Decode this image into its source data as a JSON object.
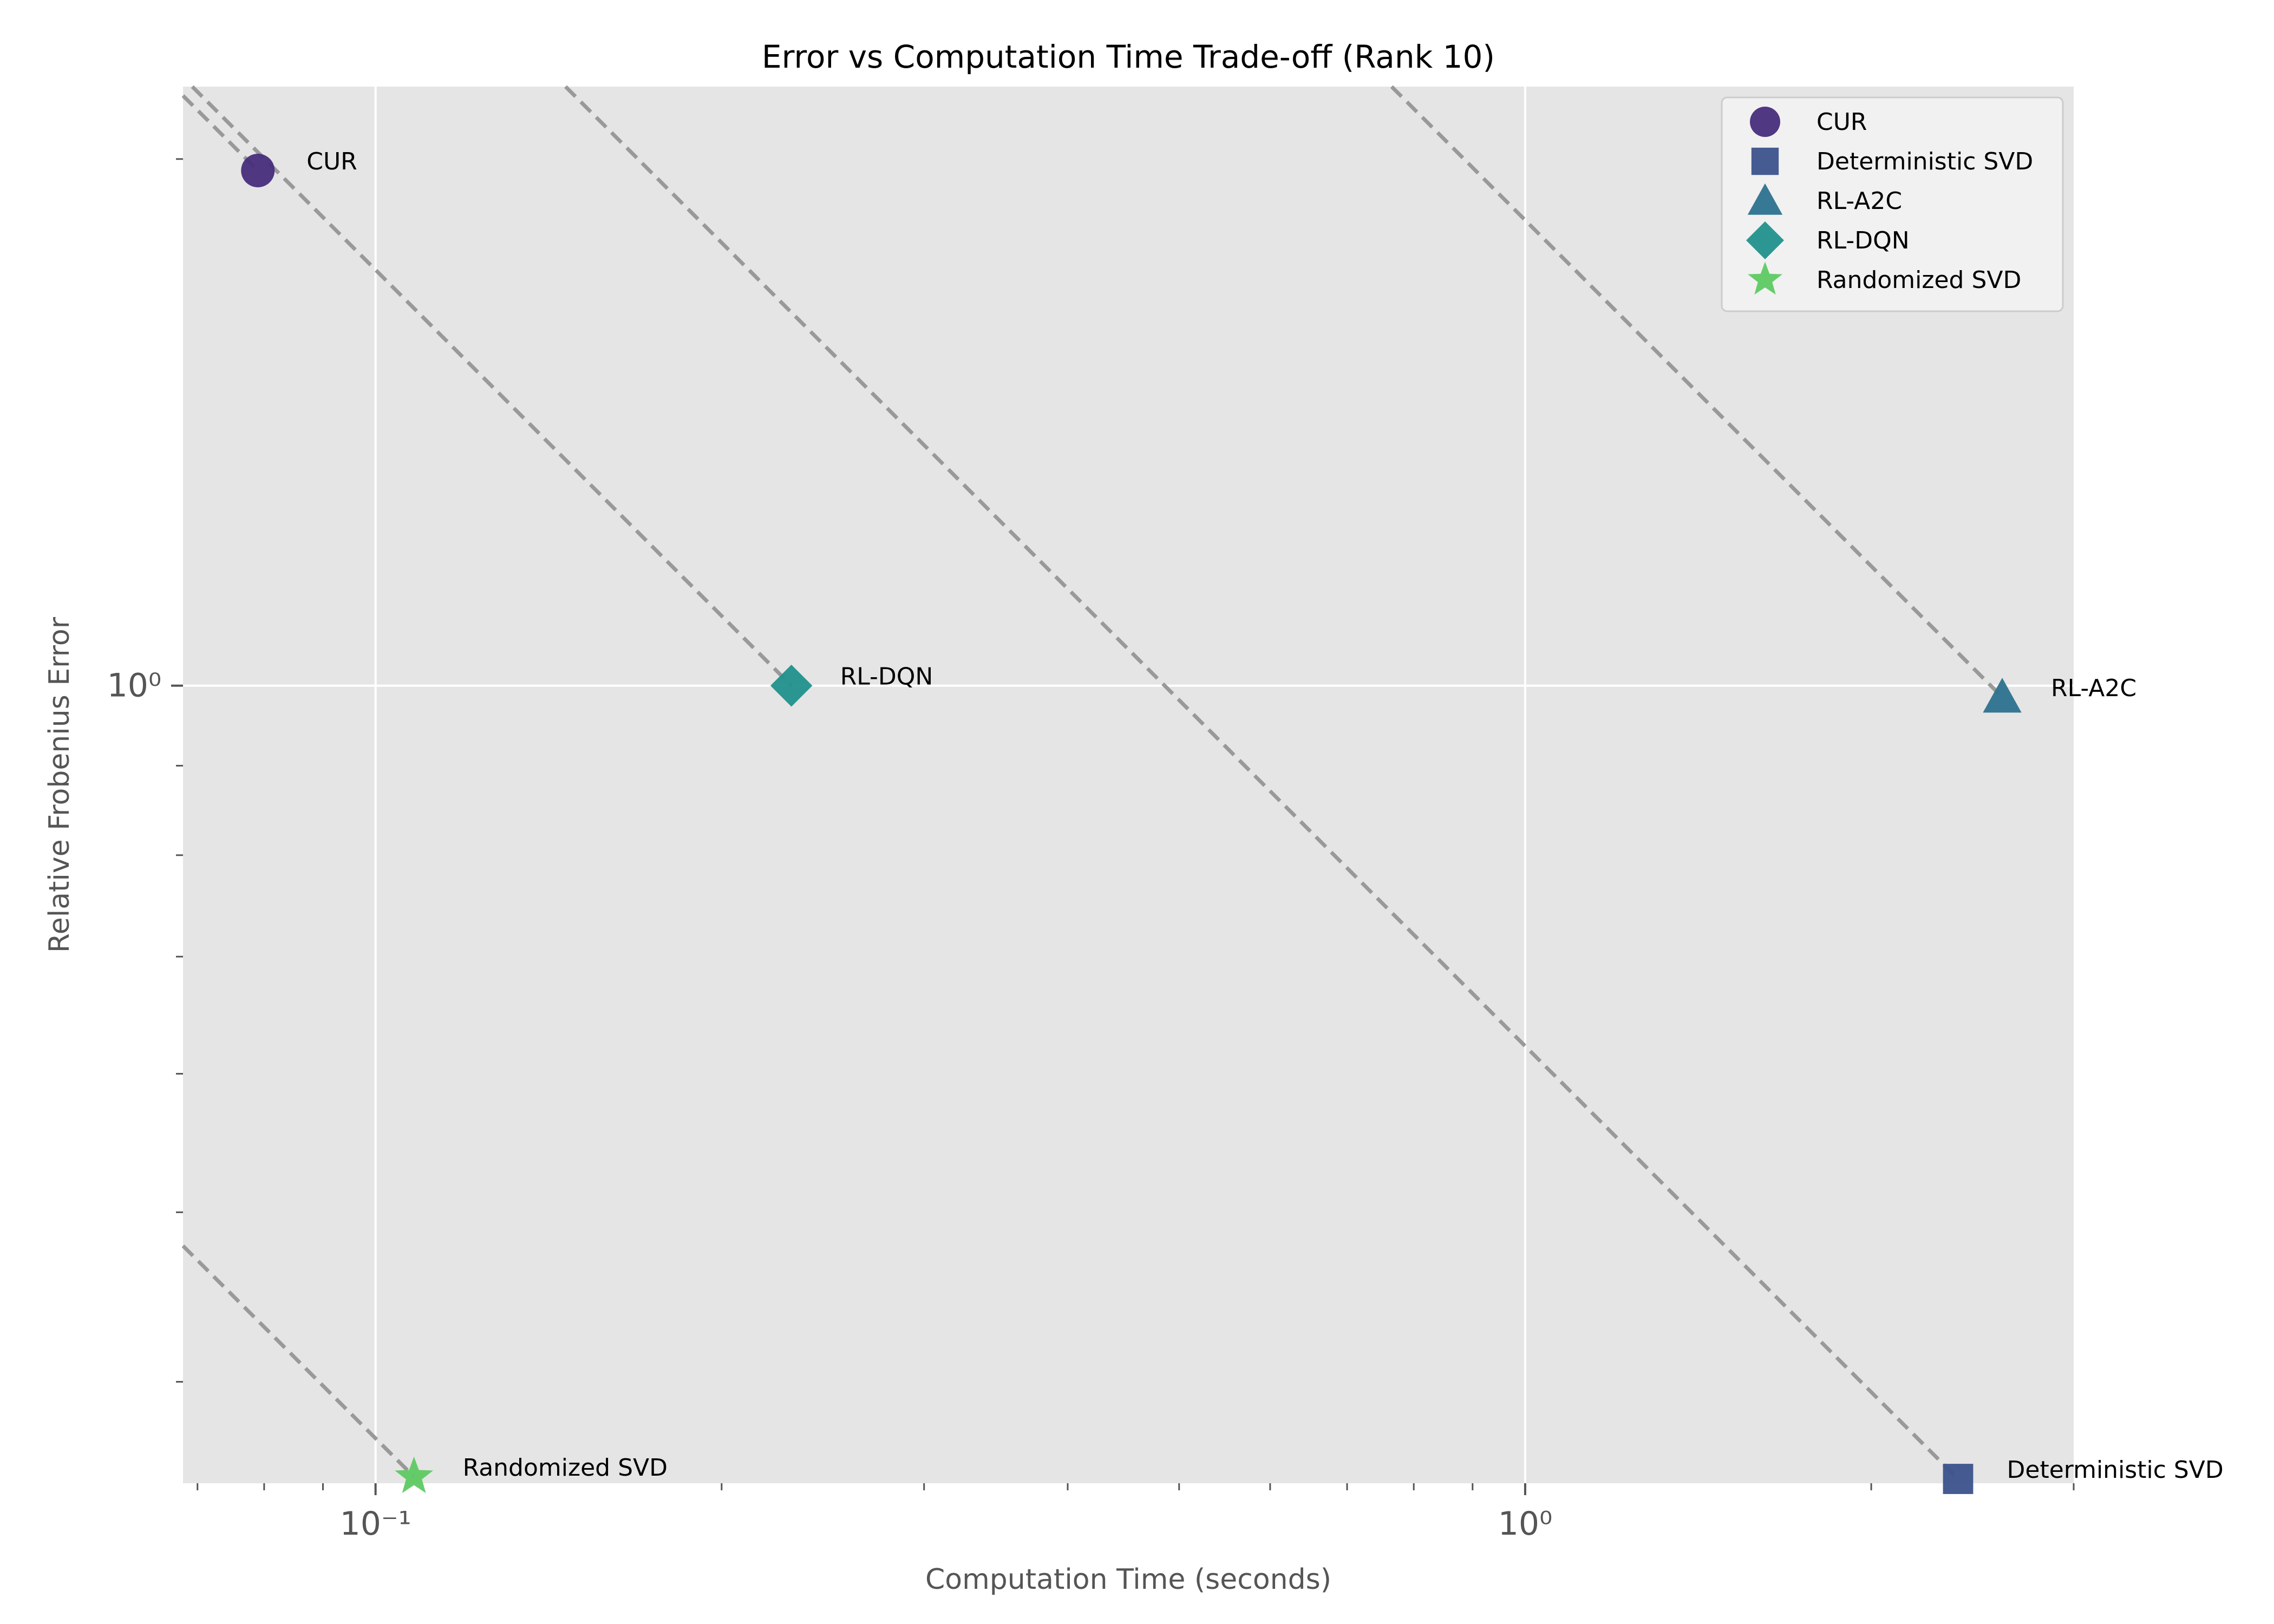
{
  "chart_data": {
    "type": "scatter",
    "title": "Error vs Computation Time Trade-off (Rank 10)",
    "xlabel": "Computation Time (seconds)",
    "ylabel": "Relative Frobenius Error",
    "xscale": "log",
    "yscale": "log",
    "xlim": [
      0.068,
      3.0
    ],
    "ylim": [
      0.35,
      2.2
    ],
    "x_ticks": [
      {
        "value": 0.1,
        "label": "10⁻¹"
      },
      {
        "value": 1,
        "label": "10⁰"
      }
    ],
    "y_ticks": [
      {
        "value": 1,
        "label": "10⁰"
      }
    ],
    "grid": true,
    "legend_position": "top-right",
    "series": [
      {
        "name": "CUR",
        "marker": "circle",
        "color": "#472d7b",
        "x": 0.079,
        "y": 1.97
      },
      {
        "name": "Deterministic SVD",
        "marker": "square",
        "color": "#3b528b",
        "x": 2.38,
        "y": 0.352
      },
      {
        "name": "RL-A2C",
        "marker": "triangle",
        "color": "#2c728e",
        "x": 2.6,
        "y": 0.985
      },
      {
        "name": "RL-DQN",
        "marker": "diamond",
        "color": "#21918c",
        "x": 0.23,
        "y": 1.0
      },
      {
        "name": "Randomized SVD",
        "marker": "star",
        "color": "#5ec962",
        "x": 0.108,
        "y": 0.353
      }
    ]
  }
}
